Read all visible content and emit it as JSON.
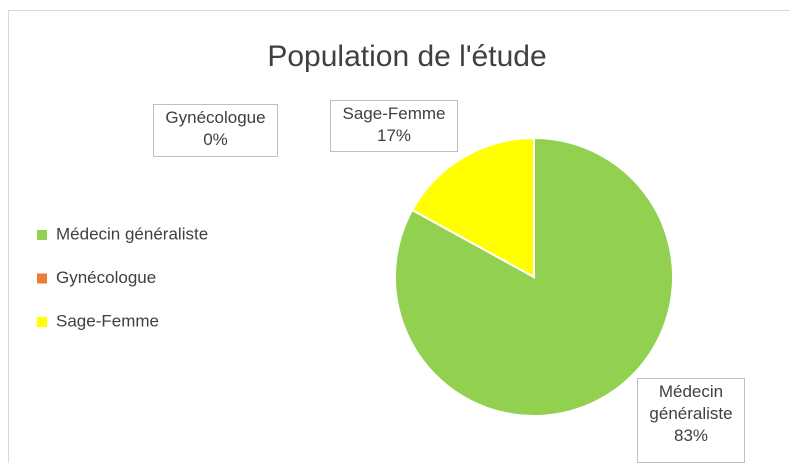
{
  "chart_data": {
    "type": "pie",
    "title": "Population de l'étude",
    "categories": [
      "Médecin généraliste",
      "Gynécologue",
      "Sage-Femme"
    ],
    "values": [
      83,
      0,
      17
    ],
    "value_labels": [
      "83%",
      "0%",
      "17%"
    ],
    "colors": [
      "#92d050",
      "#ed7d31",
      "#ffff00"
    ],
    "legend": "left"
  }
}
